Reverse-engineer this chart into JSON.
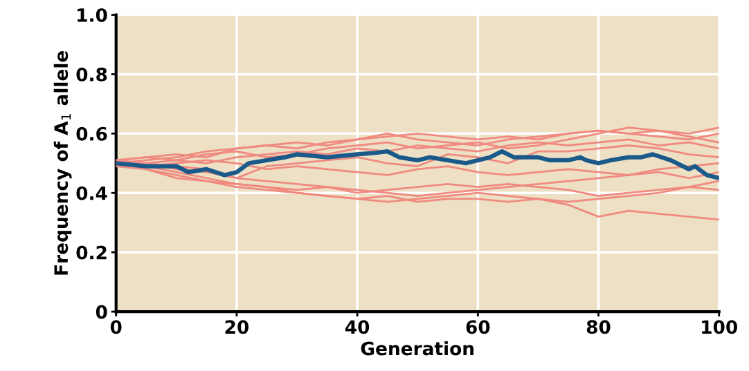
{
  "chart_data": {
    "type": "line",
    "xlabel": "Generation",
    "ylabel": "Frequency of A$_{1}$ allele",
    "x": [
      0,
      5,
      10,
      15,
      20,
      25,
      30,
      35,
      40,
      45,
      50,
      55,
      60,
      65,
      70,
      75,
      80,
      85,
      90,
      95,
      100
    ],
    "xlim": [
      0,
      100
    ],
    "xticks": [
      0,
      20,
      40,
      60,
      80,
      100
    ],
    "ylim": [
      0,
      1
    ],
    "yticks": [
      0,
      0.2,
      0.4,
      0.6,
      0.8,
      {
        "value": 1,
        "label": "1.0"
      }
    ],
    "grid": true,
    "marker": "none",
    "line_style": "solid",
    "series": [
      {
        "color": "#f08a80",
        "values": [
          0.51,
          0.52,
          0.53,
          0.52,
          0.55,
          0.56,
          0.57,
          0.56,
          0.58,
          0.59,
          0.6,
          0.59,
          0.58,
          0.59,
          0.58,
          0.6,
          0.61,
          0.6,
          0.61,
          0.6,
          0.62
        ]
      },
      {
        "color": "#f08a80",
        "values": [
          0.5,
          0.51,
          0.52,
          0.54,
          0.55,
          0.56,
          0.55,
          0.57,
          0.58,
          0.6,
          0.58,
          0.57,
          0.56,
          0.58,
          0.59,
          0.6,
          0.61,
          0.6,
          0.59,
          0.58,
          0.6
        ]
      },
      {
        "color": "#f08a80",
        "values": [
          0.51,
          0.52,
          0.51,
          0.53,
          0.54,
          0.52,
          0.53,
          0.55,
          0.56,
          0.57,
          0.55,
          0.56,
          0.57,
          0.55,
          0.56,
          0.58,
          0.6,
          0.62,
          0.61,
          0.59,
          0.57
        ]
      },
      {
        "color": "#f08a80",
        "values": [
          0.5,
          0.5,
          0.51,
          0.5,
          0.52,
          0.53,
          0.54,
          0.53,
          0.55,
          0.54,
          0.56,
          0.55,
          0.54,
          0.56,
          0.57,
          0.56,
          0.57,
          0.58,
          0.56,
          0.57,
          0.55
        ]
      },
      {
        "color": "#f08a80",
        "values": [
          0.49,
          0.5,
          0.49,
          0.48,
          0.45,
          0.49,
          0.5,
          0.51,
          0.52,
          0.5,
          0.49,
          0.53,
          0.52,
          0.5,
          0.54,
          0.54,
          0.55,
          0.56,
          0.55,
          0.53,
          0.52
        ]
      },
      {
        "color": "#f08a80",
        "values": [
          0.5,
          0.49,
          0.5,
          0.51,
          0.5,
          0.48,
          0.49,
          0.48,
          0.47,
          0.46,
          0.48,
          0.49,
          0.47,
          0.46,
          0.47,
          0.48,
          0.47,
          0.46,
          0.48,
          0.49,
          0.5
        ]
      },
      {
        "color": "#f08a80",
        "values": [
          0.51,
          0.5,
          0.48,
          0.47,
          0.45,
          0.44,
          0.43,
          0.42,
          0.41,
          0.4,
          0.39,
          0.4,
          0.41,
          0.42,
          0.43,
          0.44,
          0.45,
          0.46,
          0.47,
          0.45,
          0.47
        ]
      },
      {
        "color": "#f08a80",
        "values": [
          0.5,
          0.48,
          0.46,
          0.44,
          0.43,
          0.42,
          0.41,
          0.42,
          0.4,
          0.41,
          0.42,
          0.43,
          0.42,
          0.43,
          0.42,
          0.41,
          0.39,
          0.4,
          0.41,
          0.42,
          0.44
        ]
      },
      {
        "color": "#f08a80",
        "values": [
          0.49,
          0.48,
          0.45,
          0.44,
          0.42,
          0.41,
          0.4,
          0.39,
          0.38,
          0.37,
          0.38,
          0.39,
          0.4,
          0.39,
          0.38,
          0.37,
          0.38,
          0.39,
          0.4,
          0.42,
          0.41
        ]
      },
      {
        "color": "#f08a80",
        "values": [
          0.5,
          0.49,
          0.47,
          0.45,
          0.43,
          0.42,
          0.4,
          0.39,
          0.38,
          0.39,
          0.37,
          0.38,
          0.38,
          0.37,
          0.38,
          0.36,
          0.32,
          0.34,
          0.33,
          0.32,
          0.31
        ]
      },
      {
        "color": "#1a5a8a",
        "x": [
          0,
          5,
          10,
          12,
          15,
          18,
          20,
          22,
          25,
          28,
          30,
          35,
          40,
          43,
          45,
          47,
          50,
          52,
          55,
          58,
          60,
          62,
          64,
          66,
          70,
          72,
          75,
          77,
          78,
          80,
          82,
          85,
          87,
          89,
          92,
          95,
          96,
          98,
          100
        ],
        "values": [
          0.5,
          0.49,
          0.49,
          0.47,
          0.48,
          0.46,
          0.47,
          0.5,
          0.51,
          0.52,
          0.53,
          0.52,
          0.53,
          0.535,
          0.54,
          0.52,
          0.51,
          0.52,
          0.51,
          0.5,
          0.51,
          0.52,
          0.54,
          0.52,
          0.52,
          0.51,
          0.51,
          0.52,
          0.51,
          0.5,
          0.51,
          0.52,
          0.52,
          0.53,
          0.51,
          0.48,
          0.49,
          0.46,
          0.45
        ]
      }
    ]
  }
}
